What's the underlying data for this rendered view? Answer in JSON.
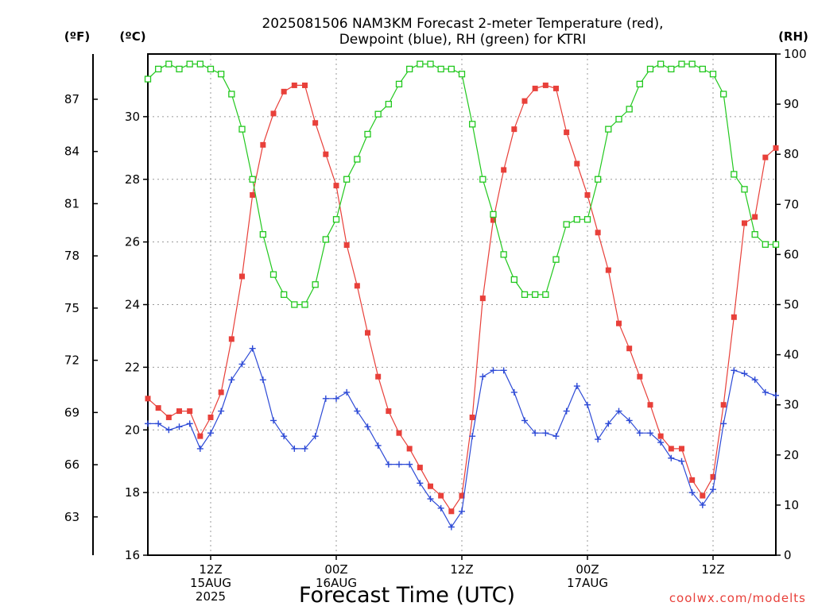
{
  "title_line1": "2025081506 NAM3KM Forecast 2-meter Temperature (red),",
  "title_line2": "Dewpoint (blue), RH (green) for KTRI",
  "credit": "coolwx.com/modelts",
  "chart_data": {
    "type": "line",
    "title": "2025081506 NAM3KM Forecast 2-meter Temperature (red), Dewpoint (blue), RH (green) for KTRI",
    "xlabel": "Forecast Time (UTC)",
    "x_unit": "forecast hour from 2025-08-15 06Z",
    "xlim": [
      0,
      60
    ],
    "x": [
      0,
      1,
      2,
      3,
      4,
      5,
      6,
      7,
      8,
      9,
      10,
      11,
      12,
      13,
      14,
      15,
      16,
      17,
      18,
      19,
      20,
      21,
      22,
      23,
      24,
      25,
      26,
      27,
      28,
      29,
      30,
      31,
      32,
      33,
      34,
      35,
      36,
      37,
      38,
      39,
      40,
      41,
      42,
      43,
      44,
      45,
      46,
      47,
      48,
      49,
      50,
      51,
      52,
      53,
      54,
      55,
      56,
      57,
      58,
      59,
      60
    ],
    "x_ticks": [
      {
        "x": 6,
        "lines": [
          "12Z",
          "15AUG",
          "2025"
        ]
      },
      {
        "x": 18,
        "lines": [
          "00Z",
          "16AUG"
        ]
      },
      {
        "x": 30,
        "lines": [
          "12Z"
        ]
      },
      {
        "x": 42,
        "lines": [
          "00Z",
          "17AUG"
        ]
      },
      {
        "x": 54,
        "lines": [
          "12Z"
        ]
      }
    ],
    "y_left_c": {
      "label": "(ºC)",
      "lim": [
        16,
        32
      ],
      "ticks": [
        16,
        18,
        20,
        22,
        24,
        26,
        28,
        30
      ]
    },
    "y_left_f": {
      "label": "(ºF)",
      "ticks": [
        63,
        66,
        69,
        72,
        75,
        78,
        81,
        84,
        87
      ]
    },
    "y_right_rh": {
      "label": "(RH)",
      "lim": [
        0,
        100
      ],
      "ticks": [
        0,
        10,
        20,
        30,
        40,
        50,
        60,
        70,
        80,
        90,
        100
      ]
    },
    "grid": true,
    "series": [
      {
        "name": "Temperature",
        "color": "#e8403a",
        "marker": "filled-square",
        "axis": "left_c",
        "values": [
          21.0,
          20.7,
          20.4,
          20.6,
          20.6,
          19.8,
          20.4,
          21.2,
          22.9,
          24.9,
          27.5,
          29.1,
          30.1,
          30.8,
          31.0,
          31.0,
          29.8,
          28.8,
          27.8,
          25.9,
          24.6,
          23.1,
          21.7,
          20.6,
          19.9,
          19.4,
          18.8,
          18.2,
          17.9,
          17.4,
          17.9,
          20.4,
          24.2,
          26.7,
          28.3,
          29.6,
          30.5,
          30.9,
          31.0,
          30.9,
          29.5,
          28.5,
          27.5,
          26.3,
          25.1,
          23.4,
          22.6,
          21.7,
          20.8,
          19.8,
          19.4,
          19.4,
          18.4,
          17.9,
          18.5,
          20.8,
          23.6,
          26.6,
          26.8,
          28.7,
          29.0
        ]
      },
      {
        "name": "Dewpoint",
        "color": "#2d4ad6",
        "marker": "plus",
        "axis": "left_c",
        "values": [
          20.2,
          20.2,
          20.0,
          20.1,
          20.2,
          19.4,
          19.9,
          20.6,
          21.6,
          22.1,
          22.6,
          21.6,
          20.3,
          19.8,
          19.4,
          19.4,
          19.8,
          21.0,
          21.0,
          21.2,
          20.6,
          20.1,
          19.5,
          18.9,
          18.9,
          18.9,
          18.3,
          17.8,
          17.5,
          16.9,
          17.4,
          19.8,
          21.7,
          21.9,
          21.9,
          21.2,
          20.3,
          19.9,
          19.9,
          19.8,
          20.6,
          21.4,
          20.8,
          19.7,
          20.2,
          20.6,
          20.3,
          19.9,
          19.9,
          19.6,
          19.1,
          19.0,
          18.0,
          17.6,
          18.1,
          20.2,
          21.9,
          21.8,
          21.6,
          21.2,
          21.1
        ]
      },
      {
        "name": "RH",
        "color": "#22c81e",
        "marker": "open-square",
        "axis": "right_rh",
        "values": [
          95,
          97,
          98,
          97,
          98,
          98,
          97,
          96,
          92,
          85,
          75,
          64,
          56,
          52,
          50,
          50,
          54,
          63,
          67,
          75,
          79,
          84,
          88,
          90,
          94,
          97,
          98,
          98,
          97,
          97,
          96,
          86,
          75,
          68,
          60,
          55,
          52,
          52,
          52,
          59,
          66,
          67,
          67,
          75,
          85,
          87,
          89,
          94,
          97,
          98,
          97,
          98,
          98,
          97,
          96,
          92,
          76,
          73,
          64,
          62,
          62
        ]
      }
    ]
  }
}
